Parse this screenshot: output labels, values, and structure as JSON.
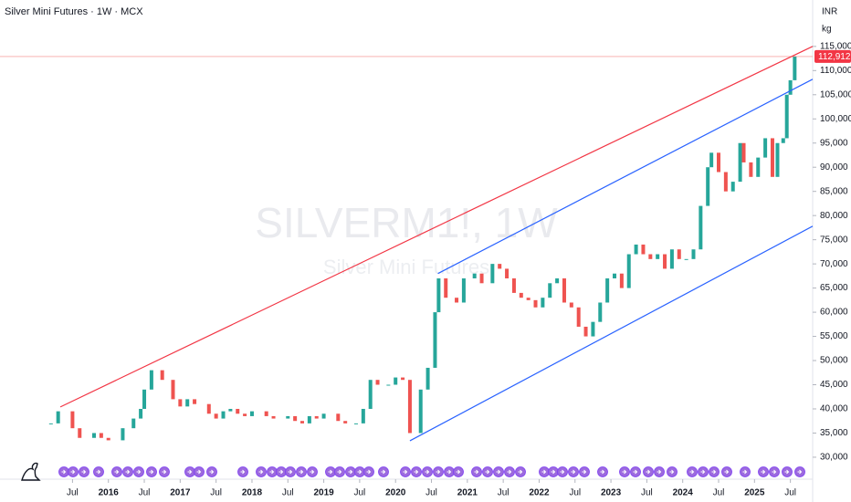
{
  "chart_data": {
    "type": "candlestick",
    "title": "Silver Mini Futures · 1W · MCX",
    "watermark": "SILVERM1!, 1W",
    "watermark_subtitle": "Silver Mini Futures",
    "currency": "INR",
    "unit": "kg",
    "up_color": "#26a69a",
    "down_color": "#ef5350",
    "xlim": [
      2014.49,
      2025.81
    ],
    "ylim": [
      26400,
      124600
    ],
    "xticks": [
      {
        "value": 2015.5,
        "label": "Jul"
      },
      {
        "value": 2016,
        "label": "2016"
      },
      {
        "value": 2016.5,
        "label": "Jul"
      },
      {
        "value": 2017,
        "label": "2017"
      },
      {
        "value": 2017.5,
        "label": "Jul"
      },
      {
        "value": 2018,
        "label": "2018"
      },
      {
        "value": 2018.5,
        "label": "Jul"
      },
      {
        "value": 2019,
        "label": "2019"
      },
      {
        "value": 2019.5,
        "label": "Jul"
      },
      {
        "value": 2020,
        "label": "2020"
      },
      {
        "value": 2020.5,
        "label": "Jul"
      },
      {
        "value": 2021,
        "label": "2021"
      },
      {
        "value": 2021.5,
        "label": "Jul"
      },
      {
        "value": 2022,
        "label": "2022"
      },
      {
        "value": 2022.5,
        "label": "Jul"
      },
      {
        "value": 2023,
        "label": "2023"
      },
      {
        "value": 2023.5,
        "label": "Jul"
      },
      {
        "value": 2024,
        "label": "2024"
      },
      {
        "value": 2024.5,
        "label": "Jul"
      },
      {
        "value": 2025,
        "label": "2025"
      },
      {
        "value": 2025.5,
        "label": "Jul"
      }
    ],
    "yticks": [
      {
        "value": 30000,
        "label": "30,000"
      },
      {
        "value": 35000,
        "label": "35,000"
      },
      {
        "value": 40000,
        "label": "40,000"
      },
      {
        "value": 45000,
        "label": "45,000"
      },
      {
        "value": 50000,
        "label": "50,000"
      },
      {
        "value": 55000,
        "label": "55,000"
      },
      {
        "value": 60000,
        "label": "60,000"
      },
      {
        "value": 65000,
        "label": "65,000"
      },
      {
        "value": 70000,
        "label": "70,000"
      },
      {
        "value": 75000,
        "label": "75,000"
      },
      {
        "value": 80000,
        "label": "80,000"
      },
      {
        "value": 85000,
        "label": "85,000"
      },
      {
        "value": 90000,
        "label": "90,000"
      },
      {
        "value": 95000,
        "label": "95,000"
      },
      {
        "value": 100000,
        "label": "100,000"
      },
      {
        "value": 105000,
        "label": "105,000"
      },
      {
        "value": 110000,
        "label": "110,000"
      },
      {
        "value": 115000,
        "label": "115,000"
      }
    ],
    "last_price": {
      "value": 112912,
      "label": "112,912"
    },
    "x": [
      2015.2,
      2015.3,
      2015.5,
      2015.6,
      2015.8,
      2015.9,
      2016.0,
      2016.2,
      2016.35,
      2016.45,
      2016.5,
      2016.6,
      2016.75,
      2016.9,
      2017.0,
      2017.1,
      2017.2,
      2017.4,
      2017.5,
      2017.6,
      2017.7,
      2017.8,
      2017.9,
      2018.0,
      2018.2,
      2018.3,
      2018.5,
      2018.6,
      2018.7,
      2018.8,
      2018.9,
      2019.0,
      2019.2,
      2019.3,
      2019.45,
      2019.55,
      2019.65,
      2019.75,
      2019.9,
      2020.0,
      2020.1,
      2020.2,
      2020.35,
      2020.45,
      2020.55,
      2020.6,
      2020.7,
      2020.85,
      2020.95,
      2021.1,
      2021.2,
      2021.35,
      2021.45,
      2021.55,
      2021.65,
      2021.75,
      2021.85,
      2021.95,
      2022.05,
      2022.15,
      2022.25,
      2022.35,
      2022.45,
      2022.55,
      2022.65,
      2022.75,
      2022.85,
      2022.95,
      2023.05,
      2023.15,
      2023.25,
      2023.35,
      2023.45,
      2023.55,
      2023.65,
      2023.75,
      2023.85,
      2023.95,
      2024.05,
      2024.15,
      2024.25,
      2024.35,
      2024.4,
      2024.5,
      2024.6,
      2024.7,
      2024.8,
      2024.85,
      2024.95,
      2025.05,
      2025.15,
      2025.25,
      2025.32,
      2025.4,
      2025.45,
      2025.5,
      2025.56
    ],
    "series": [
      {
        "name": "Close",
        "values": [
          37000,
          39500,
          36000,
          34000,
          35000,
          34000,
          33500,
          36000,
          38000,
          40000,
          44000,
          48000,
          46000,
          42000,
          40500,
          42000,
          41000,
          39000,
          38000,
          39500,
          40000,
          39000,
          38500,
          39500,
          38500,
          38000,
          38500,
          37500,
          37000,
          38500,
          38000,
          39000,
          37500,
          37000,
          37000,
          40000,
          46000,
          45000,
          45000,
          46500,
          46000,
          35000,
          44000,
          48500,
          60000,
          67000,
          63000,
          62000,
          67000,
          68000,
          66000,
          70000,
          69000,
          67000,
          64000,
          63000,
          62500,
          61000,
          63000,
          66000,
          67000,
          62000,
          61000,
          57000,
          55000,
          58000,
          62000,
          67000,
          68000,
          65000,
          72000,
          74000,
          72000,
          71000,
          72000,
          69000,
          73000,
          71000,
          71000,
          73000,
          82000,
          90000,
          93000,
          89000,
          85000,
          87000,
          95000,
          91000,
          88000,
          92000,
          96000,
          88000,
          95000,
          96000,
          105000,
          108000,
          112912
        ]
      }
    ],
    "trend_lines": [
      {
        "color": "#f23645",
        "x": [
          2015.33,
          2025.81
        ],
        "y": [
          40400,
          115000
        ]
      },
      {
        "color": "#2962ff",
        "x": [
          2020.59,
          2025.81
        ],
        "y": [
          68000,
          108200
        ]
      },
      {
        "color": "#2962ff",
        "x": [
          2020.2,
          2025.81
        ],
        "y": [
          33400,
          77800
        ]
      }
    ]
  }
}
